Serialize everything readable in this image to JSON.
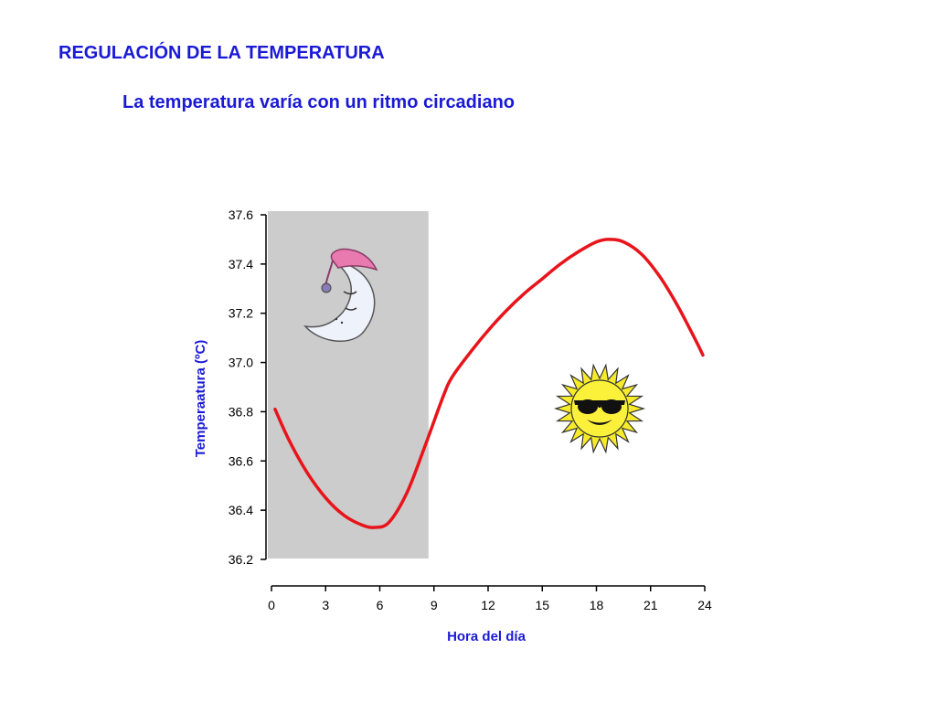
{
  "slide": {
    "title": "REGULACIÓN DE LA TEMPERATURA",
    "subtitle": "La temperatura varía con un ritmo circadiano"
  },
  "colors": {
    "heading": "#1a1ad6",
    "curve": "#e8141b",
    "night_band": "#cccccc",
    "axis": "#000000"
  },
  "icons": {
    "night": "sleeping-moon-icon",
    "day": "sun-with-sunglasses-icon"
  },
  "chart_data": {
    "type": "line",
    "xlabel": "Hora del día",
    "ylabel": "Temperaatura (ºC)",
    "xlim": [
      0,
      24
    ],
    "ylim": [
      36.2,
      37.6
    ],
    "xticks": [
      "0",
      "3",
      "6",
      "9",
      "12",
      "15",
      "18",
      "21",
      "24"
    ],
    "yticks": [
      "37.6",
      "37.4",
      "37.2",
      "37.0",
      "36.8",
      "36.6",
      "36.4",
      "36.2"
    ],
    "night_band": [
      0,
      8.7
    ],
    "series": [
      {
        "x": [
          0.2,
          1,
          2,
          3,
          4,
          5,
          5.7,
          6.5,
          7.5,
          8.5,
          9.5,
          10,
          11,
          12,
          13,
          14,
          15,
          16,
          17,
          18,
          18.7,
          19.5,
          20.5,
          21.5,
          22.5,
          23.5,
          23.9
        ],
        "values": [
          36.81,
          36.68,
          36.55,
          36.45,
          36.38,
          36.34,
          36.33,
          36.35,
          36.47,
          36.66,
          36.86,
          36.94,
          37.04,
          37.13,
          37.21,
          37.28,
          37.34,
          37.4,
          37.45,
          37.49,
          37.5,
          37.49,
          37.44,
          37.35,
          37.23,
          37.09,
          37.03
        ]
      }
    ]
  }
}
